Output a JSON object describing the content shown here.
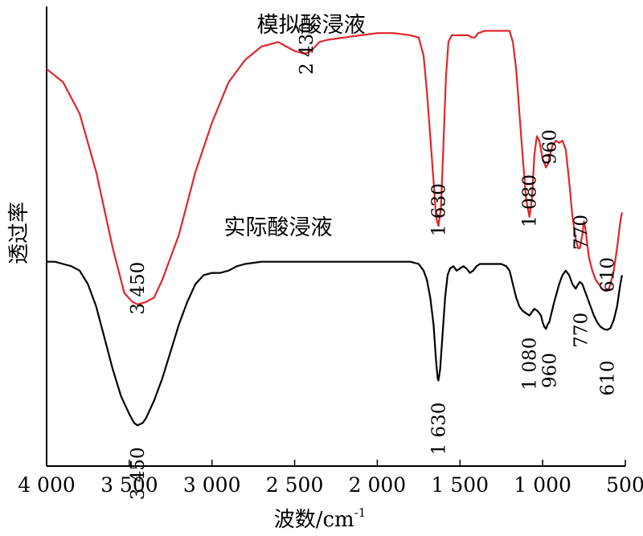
{
  "chart_data": {
    "type": "line",
    "title": "",
    "xlabel": "波数/cm",
    "xlabel_superscript": "-1",
    "ylabel": "透过率",
    "x_ticks": [
      4000,
      3500,
      3000,
      2500,
      2000,
      1500,
      1000,
      500
    ],
    "x_tick_labels": [
      "4 000",
      "3 500",
      "3 000",
      "2 500",
      "2 000",
      "1 500",
      "1 000",
      "500"
    ],
    "xlim": [
      4000,
      500
    ],
    "x_reversed": true,
    "y_tick_labels": false,
    "grid": false,
    "series": [
      {
        "name": "模拟酸浸液",
        "color": "#e0262b",
        "points": [
          [
            4000,
            0.95
          ],
          [
            3900,
            0.92
          ],
          [
            3800,
            0.85
          ],
          [
            3700,
            0.72
          ],
          [
            3600,
            0.55
          ],
          [
            3530,
            0.45
          ],
          [
            3480,
            0.43
          ],
          [
            3450,
            0.425
          ],
          [
            3400,
            0.43
          ],
          [
            3350,
            0.44
          ],
          [
            3300,
            0.48
          ],
          [
            3200,
            0.58
          ],
          [
            3100,
            0.72
          ],
          [
            3000,
            0.83
          ],
          [
            2900,
            0.92
          ],
          [
            2800,
            0.97
          ],
          [
            2700,
            1.0
          ],
          [
            2600,
            1.01
          ],
          [
            2550,
            1.0
          ],
          [
            2500,
            0.99
          ],
          [
            2450,
            0.985
          ],
          [
            2430,
            0.985
          ],
          [
            2400,
            0.99
          ],
          [
            2350,
            1.01
          ],
          [
            2300,
            1.015
          ],
          [
            2200,
            1.02
          ],
          [
            2100,
            1.025
          ],
          [
            2000,
            1.03
          ],
          [
            1900,
            1.03
          ],
          [
            1800,
            1.025
          ],
          [
            1750,
            1.02
          ],
          [
            1720,
            0.98
          ],
          [
            1700,
            0.9
          ],
          [
            1680,
            0.8
          ],
          [
            1660,
            0.7
          ],
          [
            1645,
            0.62
          ],
          [
            1630,
            0.6
          ],
          [
            1615,
            0.64
          ],
          [
            1600,
            0.78
          ],
          [
            1585,
            0.93
          ],
          [
            1570,
            1.01
          ],
          [
            1550,
            1.025
          ],
          [
            1500,
            1.025
          ],
          [
            1450,
            1.025
          ],
          [
            1430,
            1.02
          ],
          [
            1410,
            1.02
          ],
          [
            1390,
            1.03
          ],
          [
            1350,
            1.035
          ],
          [
            1300,
            1.035
          ],
          [
            1250,
            1.035
          ],
          [
            1200,
            1.035
          ],
          [
            1180,
            1.01
          ],
          [
            1160,
            0.95
          ],
          [
            1140,
            0.85
          ],
          [
            1120,
            0.75
          ],
          [
            1100,
            0.66
          ],
          [
            1080,
            0.62
          ],
          [
            1065,
            0.66
          ],
          [
            1050,
            0.76
          ],
          [
            1035,
            0.8
          ],
          [
            1020,
            0.79
          ],
          [
            1000,
            0.75
          ],
          [
            980,
            0.73
          ],
          [
            965,
            0.74
          ],
          [
            955,
            0.76
          ],
          [
            940,
            0.78
          ],
          [
            920,
            0.79
          ],
          [
            900,
            0.785
          ],
          [
            880,
            0.79
          ],
          [
            860,
            0.77
          ],
          [
            840,
            0.7
          ],
          [
            820,
            0.62
          ],
          [
            800,
            0.57
          ],
          [
            785,
            0.55
          ],
          [
            775,
            0.55
          ],
          [
            760,
            0.58
          ],
          [
            750,
            0.61
          ],
          [
            740,
            0.59
          ],
          [
            720,
            0.53
          ],
          [
            700,
            0.5
          ],
          [
            680,
            0.48
          ],
          [
            660,
            0.47
          ],
          [
            640,
            0.46
          ],
          [
            625,
            0.455
          ],
          [
            610,
            0.455
          ],
          [
            600,
            0.46
          ],
          [
            590,
            0.47
          ],
          [
            570,
            0.5
          ],
          [
            550,
            0.55
          ],
          [
            530,
            0.61
          ],
          [
            520,
            0.63
          ]
        ]
      },
      {
        "name": "实际酸浸液",
        "color": "#000000",
        "points": [
          [
            4000,
            0.52
          ],
          [
            3950,
            0.52
          ],
          [
            3900,
            0.515
          ],
          [
            3850,
            0.51
          ],
          [
            3800,
            0.5
          ],
          [
            3750,
            0.47
          ],
          [
            3700,
            0.42
          ],
          [
            3650,
            0.35
          ],
          [
            3600,
            0.28
          ],
          [
            3550,
            0.22
          ],
          [
            3500,
            0.18
          ],
          [
            3470,
            0.16
          ],
          [
            3450,
            0.155
          ],
          [
            3420,
            0.16
          ],
          [
            3400,
            0.17
          ],
          [
            3350,
            0.21
          ],
          [
            3300,
            0.26
          ],
          [
            3250,
            0.32
          ],
          [
            3200,
            0.38
          ],
          [
            3150,
            0.43
          ],
          [
            3100,
            0.47
          ],
          [
            3050,
            0.49
          ],
          [
            3000,
            0.495
          ],
          [
            2950,
            0.495
          ],
          [
            2900,
            0.5
          ],
          [
            2850,
            0.51
          ],
          [
            2800,
            0.515
          ],
          [
            2700,
            0.52
          ],
          [
            2600,
            0.52
          ],
          [
            2500,
            0.52
          ],
          [
            2400,
            0.52
          ],
          [
            2300,
            0.52
          ],
          [
            2200,
            0.52
          ],
          [
            2100,
            0.52
          ],
          [
            2000,
            0.52
          ],
          [
            1900,
            0.52
          ],
          [
            1800,
            0.52
          ],
          [
            1750,
            0.515
          ],
          [
            1720,
            0.5
          ],
          [
            1700,
            0.48
          ],
          [
            1680,
            0.44
          ],
          [
            1660,
            0.38
          ],
          [
            1645,
            0.3
          ],
          [
            1635,
            0.26
          ],
          [
            1630,
            0.255
          ],
          [
            1620,
            0.28
          ],
          [
            1605,
            0.36
          ],
          [
            1590,
            0.44
          ],
          [
            1575,
            0.49
          ],
          [
            1560,
            0.505
          ],
          [
            1540,
            0.51
          ],
          [
            1520,
            0.5
          ],
          [
            1500,
            0.505
          ],
          [
            1480,
            0.51
          ],
          [
            1460,
            0.505
          ],
          [
            1440,
            0.495
          ],
          [
            1420,
            0.5
          ],
          [
            1400,
            0.51
          ],
          [
            1380,
            0.515
          ],
          [
            1350,
            0.515
          ],
          [
            1300,
            0.515
          ],
          [
            1250,
            0.515
          ],
          [
            1220,
            0.51
          ],
          [
            1200,
            0.5
          ],
          [
            1180,
            0.47
          ],
          [
            1160,
            0.44
          ],
          [
            1140,
            0.42
          ],
          [
            1120,
            0.41
          ],
          [
            1100,
            0.405
          ],
          [
            1080,
            0.4
          ],
          [
            1070,
            0.405
          ],
          [
            1060,
            0.41
          ],
          [
            1050,
            0.415
          ],
          [
            1030,
            0.41
          ],
          [
            1010,
            0.4
          ],
          [
            1000,
            0.385
          ],
          [
            990,
            0.375
          ],
          [
            980,
            0.37
          ],
          [
            970,
            0.38
          ],
          [
            960,
            0.385
          ],
          [
            950,
            0.4
          ],
          [
            930,
            0.43
          ],
          [
            900,
            0.47
          ],
          [
            880,
            0.49
          ],
          [
            860,
            0.5
          ],
          [
            840,
            0.49
          ],
          [
            820,
            0.47
          ],
          [
            800,
            0.46
          ],
          [
            785,
            0.47
          ],
          [
            775,
            0.475
          ],
          [
            760,
            0.47
          ],
          [
            750,
            0.46
          ],
          [
            730,
            0.44
          ],
          [
            710,
            0.42
          ],
          [
            690,
            0.4
          ],
          [
            670,
            0.385
          ],
          [
            650,
            0.375
          ],
          [
            630,
            0.37
          ],
          [
            610,
            0.368
          ],
          [
            590,
            0.372
          ],
          [
            570,
            0.39
          ],
          [
            550,
            0.42
          ],
          [
            530,
            0.47
          ],
          [
            520,
            0.49
          ]
        ]
      }
    ],
    "annotations": [
      {
        "text": "模拟酸浸液",
        "series": "模拟酸浸液",
        "kind": "series-label"
      },
      {
        "text": "实际酸浸液",
        "series": "实际酸浸液",
        "kind": "series-label"
      },
      {
        "text": "3 450",
        "series": "模拟酸浸液",
        "x": 3450
      },
      {
        "text": "2 430",
        "series": "模拟酸浸液",
        "x": 2430
      },
      {
        "text": "1 630",
        "series": "模拟酸浸液",
        "x": 1630
      },
      {
        "text": "1 080",
        "series": "模拟酸浸液",
        "x": 1080
      },
      {
        "text": "960",
        "series": "模拟酸浸液",
        "x": 960
      },
      {
        "text": "770",
        "series": "模拟酸浸液",
        "x": 770
      },
      {
        "text": "610",
        "series": "模拟酸浸液",
        "x": 610
      },
      {
        "text": "3 450",
        "series": "实际酸浸液",
        "x": 3450
      },
      {
        "text": "1 630",
        "series": "实际酸浸液",
        "x": 1630
      },
      {
        "text": "1 080",
        "series": "实际酸浸液",
        "x": 1080
      },
      {
        "text": "960",
        "series": "实际酸浸液",
        "x": 960
      },
      {
        "text": "770",
        "series": "实际酸浸液",
        "x": 770
      },
      {
        "text": "610",
        "series": "实际酸浸液",
        "x": 610
      }
    ]
  }
}
